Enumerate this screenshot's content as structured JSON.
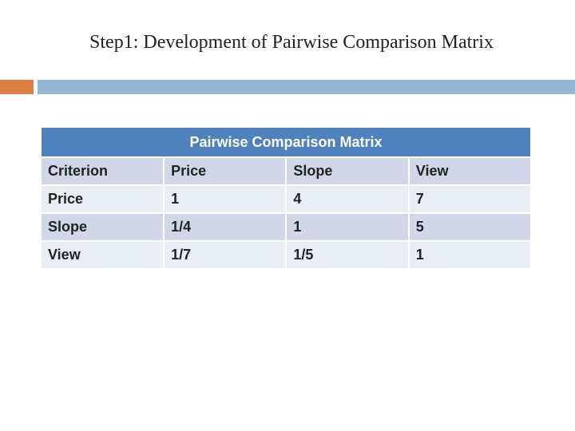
{
  "header": {
    "title": "Step1: Development of Pairwise Comparison Matrix"
  },
  "table": {
    "title": "Pairwise Comparison Matrix",
    "columns": [
      "Criterion",
      "Price",
      "Slope",
      "View"
    ],
    "rows": [
      [
        "Price",
        "1",
        "4",
        "7"
      ],
      [
        "Slope",
        "1/4",
        "1",
        "5"
      ],
      [
        "View",
        "1/7",
        "1/5",
        "1"
      ]
    ]
  }
}
